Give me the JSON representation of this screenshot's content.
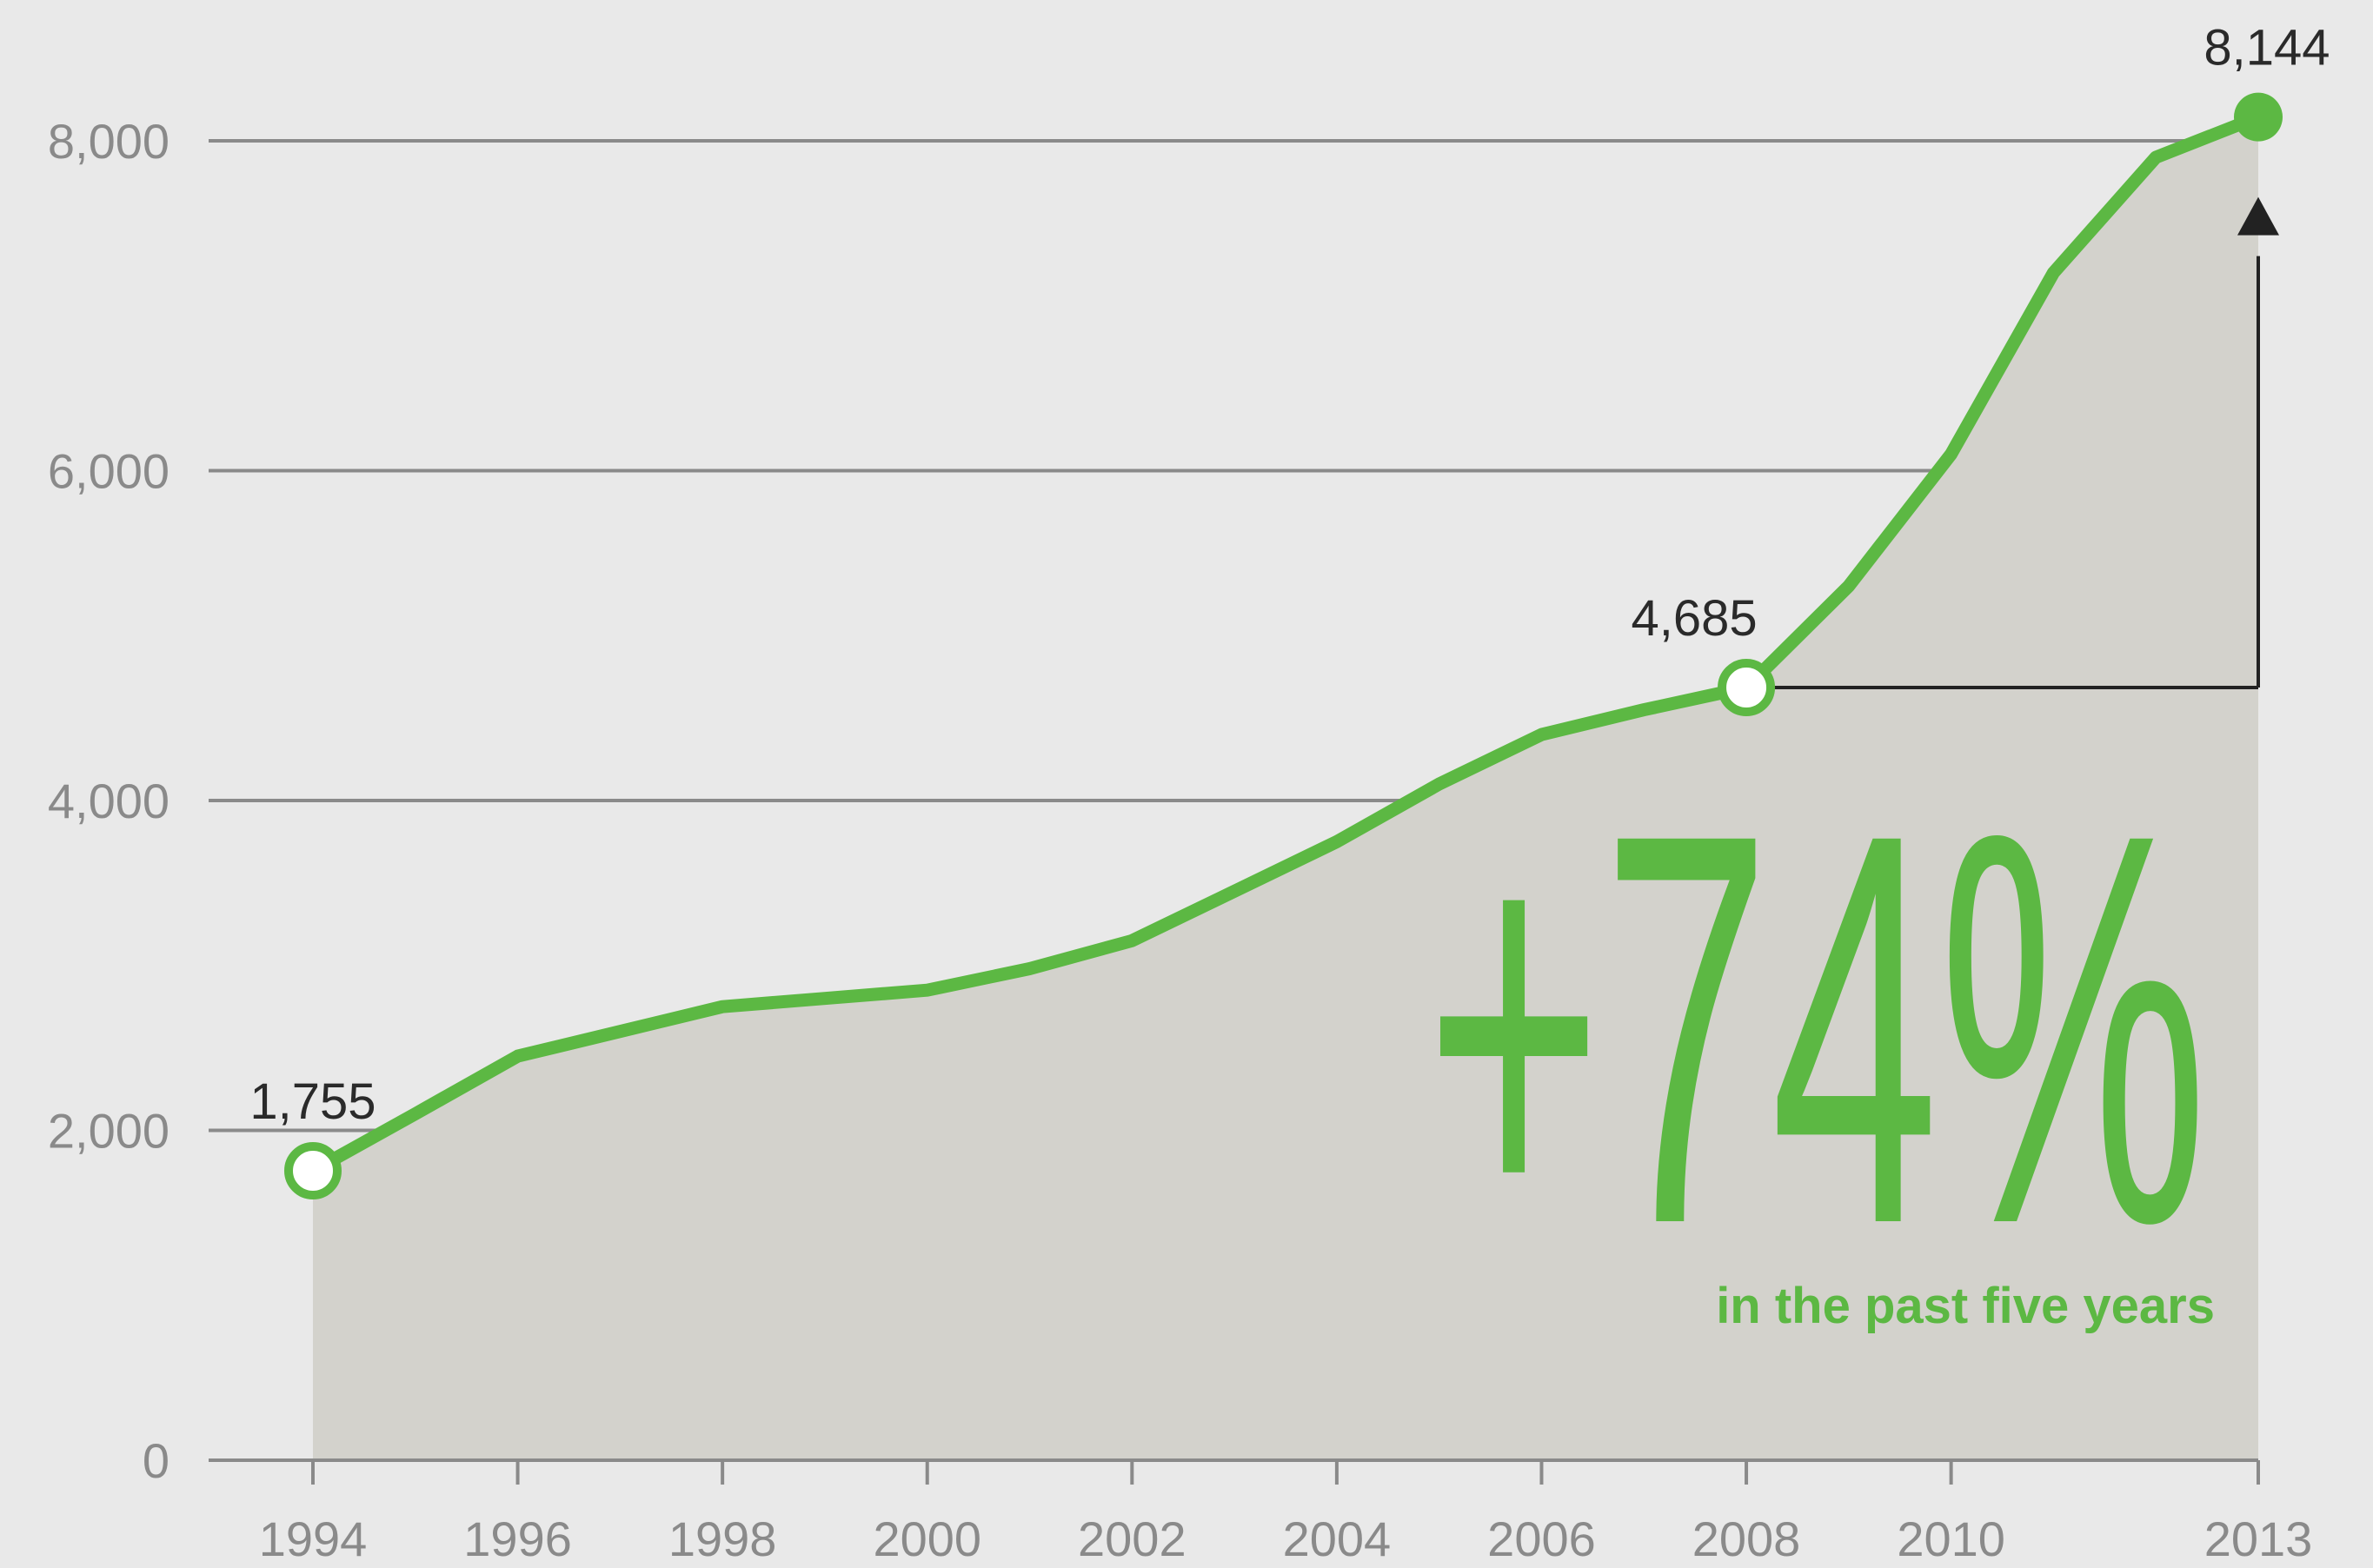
{
  "chart_data": {
    "type": "area",
    "x": [
      1994,
      1995,
      1996,
      1997,
      1998,
      1999,
      2000,
      2001,
      2002,
      2003,
      2004,
      2005,
      2006,
      2007,
      2008,
      2009,
      2010,
      2011,
      2012,
      2013
    ],
    "y": [
      1755,
      2100,
      2450,
      2600,
      2750,
      2800,
      2850,
      2980,
      3150,
      3450,
      3750,
      4100,
      4400,
      4550,
      4685,
      5300,
      6100,
      7200,
      7900,
      8144
    ],
    "xticks": [
      "1994",
      "1996",
      "1998",
      "2000",
      "2002",
      "2004",
      "2006",
      "2008",
      "2010",
      "2013"
    ],
    "yticks": [
      "0",
      "2,000",
      "4,000",
      "6,000",
      "8,000"
    ],
    "ylim": [
      0,
      8000
    ],
    "xlim": [
      1994,
      2013
    ],
    "grid": true,
    "annotations": [
      {
        "x": 1994,
        "y": 1755,
        "text": "1,755",
        "marker": "open-circle"
      },
      {
        "x": 2008,
        "y": 4685,
        "text": "4,685",
        "marker": "open-circle"
      },
      {
        "x": 2013,
        "y": 8144,
        "text": "8,144",
        "marker": "filled-circle"
      }
    ],
    "callout": {
      "value": "+74%",
      "caption": "in the past five years"
    },
    "colors": {
      "line": "#5cb843",
      "area": "#d3d2cc",
      "grid": "#8a8a8a",
      "arrow": "#222222",
      "background": "#e9e9e9"
    }
  }
}
